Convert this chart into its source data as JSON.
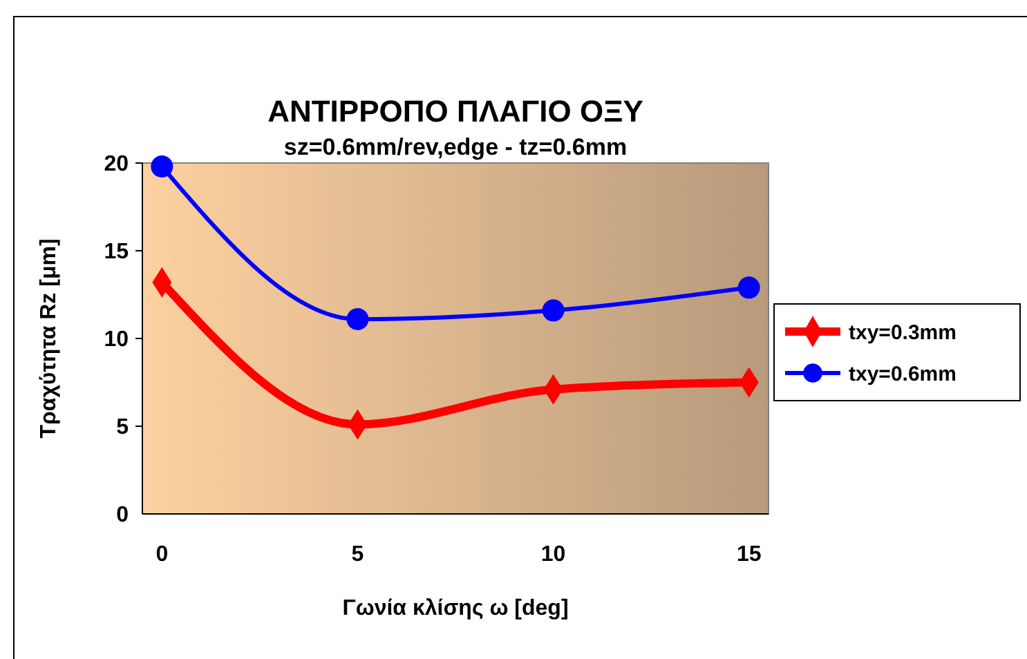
{
  "chart_data": {
    "type": "line",
    "title": "ΑΝΤΙΡΡΟΠΟ ΠΛΑΓΙΟ ΟΞΥ",
    "subtitle": "sz=0.6mm/rev,edge - tz=0.6mm",
    "xlabel": "Γωνία κλίσης ω [deg]",
    "ylabel": "Τραχύτητα Rz [μm]",
    "x": [
      0,
      5,
      10,
      15
    ],
    "xlim": [
      -0.5,
      15.5
    ],
    "xticks": [
      0,
      5,
      10,
      15
    ],
    "ylim": [
      0,
      20
    ],
    "yticks": [
      0,
      5,
      10,
      15,
      20
    ],
    "grid": false,
    "legend": "right",
    "series": [
      {
        "name": "txy=0.3mm",
        "color": "#ff0000",
        "marker": "diamond",
        "values": [
          13.2,
          5.1,
          7.1,
          7.5
        ]
      },
      {
        "name": "txy=0.6mm",
        "color": "#0000ff",
        "marker": "circle",
        "values": [
          19.8,
          11.1,
          11.6,
          12.9
        ]
      }
    ]
  }
}
